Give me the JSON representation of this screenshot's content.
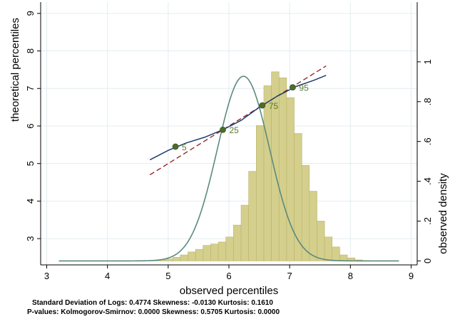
{
  "chart_data": {
    "type": "bar",
    "xlabel": "observed percentiles",
    "ylabel_left": "theoretical percentiles",
    "ylabel_right": "observed density",
    "xlim": [
      2.9,
      9.1
    ],
    "x_ticks": [
      3,
      4,
      5,
      6,
      7,
      8,
      9
    ],
    "ylim_left": [
      2.3,
      9.3
    ],
    "y_ticks_left": [
      3,
      4,
      5,
      6,
      7,
      8,
      9
    ],
    "ylim_right": [
      -0.02,
      1.3
    ],
    "y_ticks_right": [
      0,
      0.2,
      0.4,
      0.6,
      0.8,
      1
    ],
    "y_tick_labels_right": [
      "0",
      ".2",
      ".4",
      ".6",
      ".8",
      "1"
    ],
    "grid": true,
    "colors": {
      "bars": "#d4cf8c",
      "bar_edge": "#b9b36a",
      "density_curve": "#5b8a7e",
      "qq_curve": "#1f3d6e",
      "reference_line": "#8c1c1c",
      "markers": "#4f6b2b",
      "percentile_label": "#5b7a2c",
      "grid": "#e3ecf0"
    },
    "histogram": {
      "bin_start": 3.2,
      "bin_width": 0.125,
      "densities": [
        0,
        0,
        0,
        0,
        0,
        0,
        0,
        0,
        0,
        0,
        0,
        0,
        0.002,
        0.005,
        0.01,
        0.018,
        0.03,
        0.045,
        0.058,
        0.078,
        0.085,
        0.095,
        0.12,
        0.18,
        0.28,
        0.45,
        0.68,
        0.88,
        0.95,
        0.92,
        0.82,
        0.64,
        0.48,
        0.35,
        0.2,
        0.12,
        0.07,
        0.03,
        0.015,
        0.005,
        0.002,
        0,
        0,
        0,
        0,
        0,
        0,
        0,
        0
      ]
    },
    "density_curve": {
      "mean": 6.24,
      "sd": 0.43,
      "x_range": [
        3.2,
        8.8
      ]
    },
    "qq_curve": {
      "x": [
        4.7,
        5.0,
        5.3,
        5.6,
        5.9,
        6.2,
        6.5,
        6.8,
        7.1,
        7.4,
        7.6
      ],
      "y": [
        5.1,
        5.35,
        5.55,
        5.7,
        5.9,
        6.15,
        6.5,
        6.8,
        7.05,
        7.22,
        7.35
      ]
    },
    "reference_line": {
      "x": [
        4.7,
        7.6
      ],
      "y": [
        4.7,
        7.6
      ]
    },
    "percentile_points": [
      {
        "label": "5",
        "x": 5.12,
        "y": 5.45
      },
      {
        "label": "25",
        "x": 5.9,
        "y": 5.9
      },
      {
        "label": "75",
        "x": 6.55,
        "y": 6.55
      },
      {
        "label": "95",
        "x": 7.05,
        "y": 7.03
      }
    ]
  },
  "stats": {
    "line1": "Standard Deviation of Logs: 0.4774   Skewness: -0.0130   Kurtosis: 0.1610",
    "line2": "P-values: Kolmogorov-Smirnov: 0.0000   Skewness: 0.5705   Kurtosis: 0.0000"
  }
}
